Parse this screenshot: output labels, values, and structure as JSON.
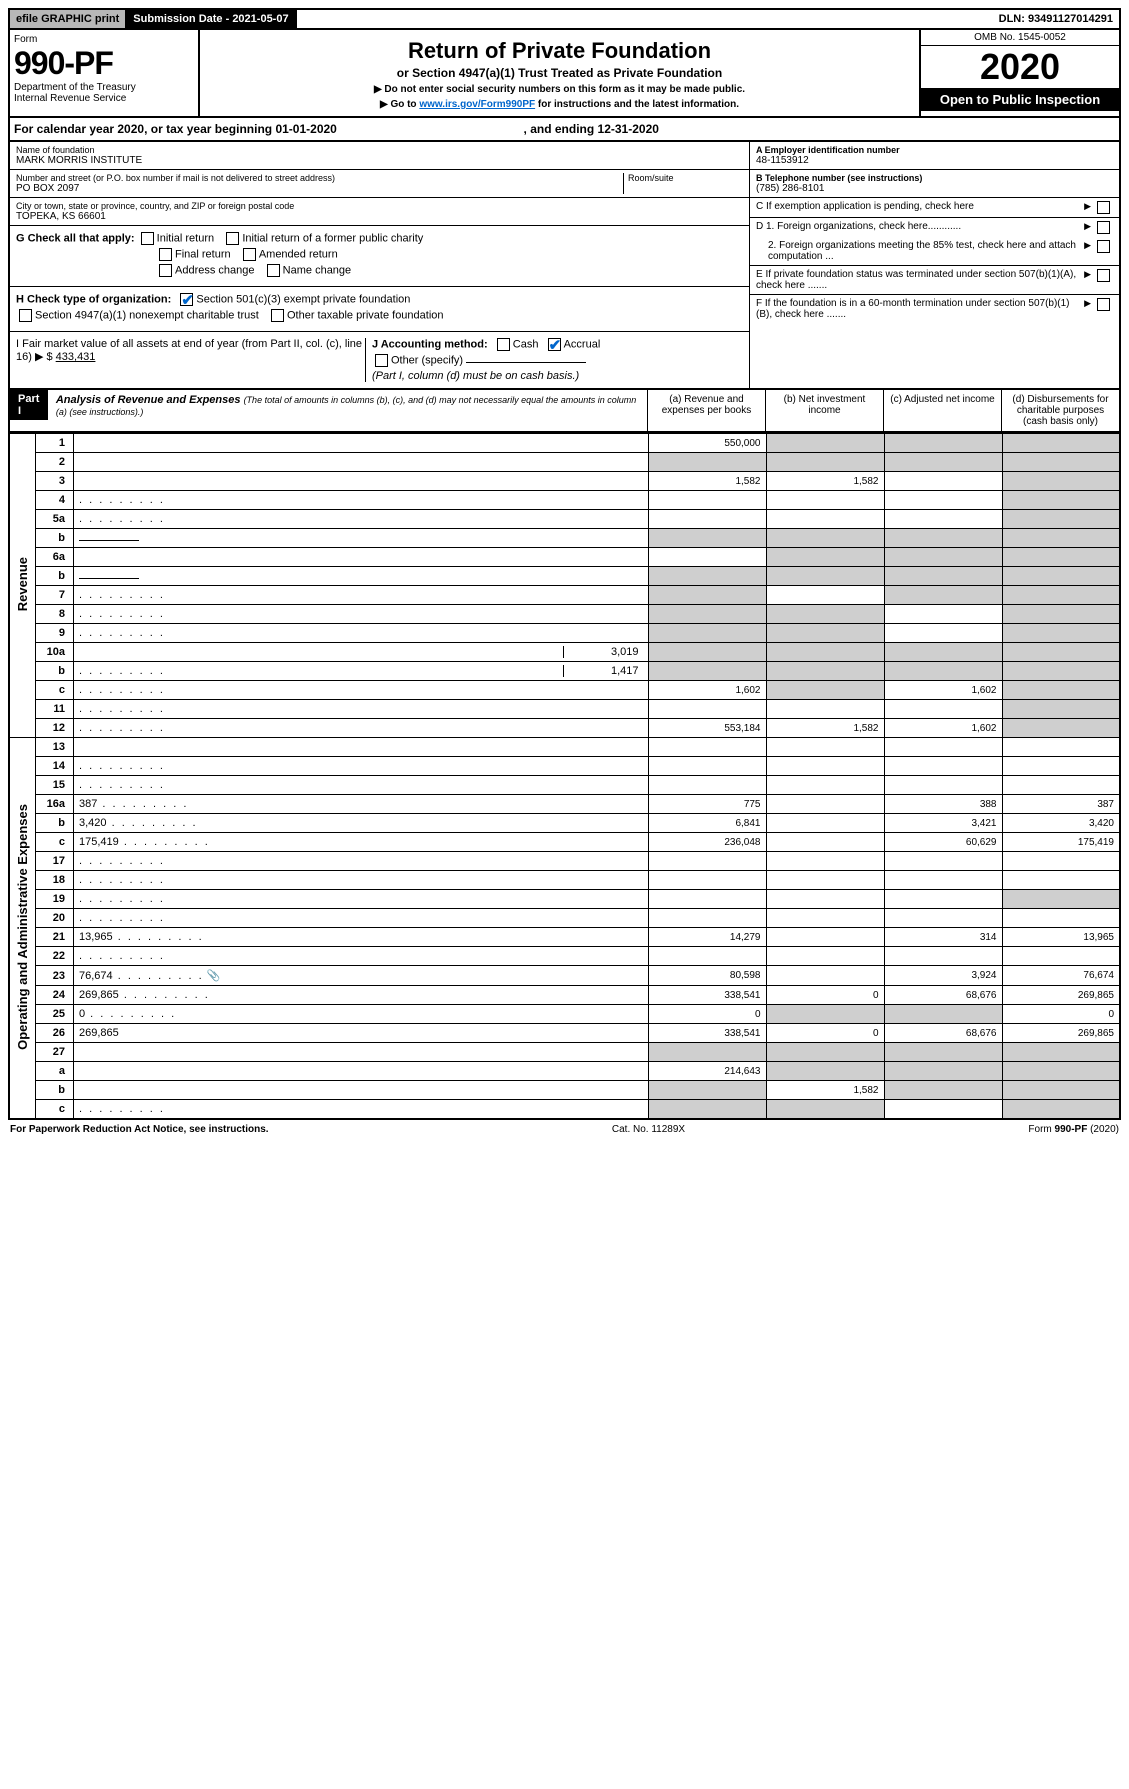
{
  "topbar": {
    "efile": "efile GRAPHIC print",
    "submission": "Submission Date - 2021-05-07",
    "dln": "DLN: 93491127014291"
  },
  "header": {
    "form": "Form",
    "number": "990-PF",
    "dept": "Department of the Treasury",
    "irs": "Internal Revenue Service",
    "title": "Return of Private Foundation",
    "subtitle": "or Section 4947(a)(1) Trust Treated as Private Foundation",
    "note1": "▶ Do not enter social security numbers on this form as it may be made public.",
    "note2_pre": "▶ Go to ",
    "note2_link": "www.irs.gov/Form990PF",
    "note2_post": " for instructions and the latest information.",
    "omb": "OMB No. 1545-0052",
    "year": "2020",
    "open": "Open to Public Inspection"
  },
  "calyear": {
    "pre": "For calendar year 2020, or tax year beginning ",
    "begin": "01-01-2020",
    "mid": " , and ending ",
    "end": "12-31-2020"
  },
  "info": {
    "name_lbl": "Name of foundation",
    "name": "MARK MORRIS INSTITUTE",
    "addr_lbl": "Number and street (or P.O. box number if mail is not delivered to street address)",
    "room_lbl": "Room/suite",
    "addr": "PO BOX 2097",
    "city_lbl": "City or town, state or province, country, and ZIP or foreign postal code",
    "city": "TOPEKA, KS  66601",
    "A_lbl": "A Employer identification number",
    "A_val": "48-1153912",
    "B_lbl": "B Telephone number (see instructions)",
    "B_val": "(785) 286-8101",
    "C_lbl": "C If exemption application is pending, check here",
    "D1": "D 1. Foreign organizations, check here............",
    "D2": "2. Foreign organizations meeting the 85% test, check here and attach computation ...",
    "E": "E If private foundation status was terminated under section 507(b)(1)(A), check here .......",
    "F": "F If the foundation is in a 60-month termination under section 507(b)(1)(B), check here .......",
    "G": "G Check all that apply:",
    "G_initial": "Initial return",
    "G_initial_former": "Initial return of a former public charity",
    "G_final": "Final return",
    "G_amended": "Amended return",
    "G_address": "Address change",
    "G_name": "Name change",
    "H": "H Check type of organization:",
    "H_501c3": "Section 501(c)(3) exempt private foundation",
    "H_4947": "Section 4947(a)(1) nonexempt charitable trust",
    "H_other": "Other taxable private foundation",
    "I": "I Fair market value of all assets at end of year (from Part II, col. (c), line 16) ▶ $",
    "I_val": "433,431",
    "J": "J Accounting method:",
    "J_cash": "Cash",
    "J_accrual": "Accrual",
    "J_other": "Other (specify)",
    "J_note": "(Part I, column (d) must be on cash basis.)"
  },
  "part1": {
    "label": "Part I",
    "title": "Analysis of Revenue and Expenses",
    "note": "(The total of amounts in columns (b), (c), and (d) may not necessarily equal the amounts in column (a) (see instructions).)",
    "col_a": "(a) Revenue and expenses per books",
    "col_b": "(b) Net investment income",
    "col_c": "(c) Adjusted net income",
    "col_d": "(d) Disbursements for charitable purposes (cash basis only)"
  },
  "sections": {
    "revenue": "Revenue",
    "expenses": "Operating and Administrative Expenses"
  },
  "rows": [
    {
      "n": "1",
      "d": "",
      "a": "550,000",
      "b": "",
      "c": "",
      "bg": true,
      "cg": true,
      "dg": true
    },
    {
      "n": "2",
      "d": "",
      "a": "",
      "b": "",
      "c": "",
      "ag": true,
      "bg": true,
      "cg": true,
      "dg": true
    },
    {
      "n": "3",
      "d": "",
      "a": "1,582",
      "b": "1,582",
      "c": "",
      "dg": true
    },
    {
      "n": "4",
      "d": "",
      "a": "",
      "b": "",
      "c": "",
      "dg": true,
      "dots": true
    },
    {
      "n": "5a",
      "d": "",
      "a": "",
      "b": "",
      "c": "",
      "dg": true,
      "dots": true
    },
    {
      "n": "b",
      "d": "",
      "a": "",
      "b": "",
      "c": "",
      "ag": true,
      "bg": true,
      "cg": true,
      "dg": true,
      "inline": ""
    },
    {
      "n": "6a",
      "d": "",
      "a": "",
      "b": "",
      "c": "",
      "bg": true,
      "cg": true,
      "dg": true
    },
    {
      "n": "b",
      "d": "",
      "a": "",
      "b": "",
      "c": "",
      "ag": true,
      "bg": true,
      "cg": true,
      "dg": true,
      "inline": ""
    },
    {
      "n": "7",
      "d": "",
      "a": "",
      "b": "",
      "c": "",
      "ag": true,
      "cg": true,
      "dg": true,
      "dots": true
    },
    {
      "n": "8",
      "d": "",
      "a": "",
      "b": "",
      "c": "",
      "ag": true,
      "bg": true,
      "dg": true,
      "dots": true
    },
    {
      "n": "9",
      "d": "",
      "a": "",
      "b": "",
      "c": "",
      "ag": true,
      "bg": true,
      "dg": true,
      "dots": true
    },
    {
      "n": "10a",
      "d": "",
      "a": "",
      "b": "",
      "c": "",
      "ag": true,
      "bg": true,
      "cg": true,
      "dg": true,
      "split": "3,019"
    },
    {
      "n": "b",
      "d": "",
      "a": "",
      "b": "",
      "c": "",
      "ag": true,
      "bg": true,
      "cg": true,
      "dg": true,
      "split": "1,417",
      "dots": true
    },
    {
      "n": "c",
      "d": "",
      "a": "1,602",
      "b": "",
      "c": "1,602",
      "bg": true,
      "dg": true,
      "dots": true
    },
    {
      "n": "11",
      "d": "",
      "a": "",
      "b": "",
      "c": "",
      "dg": true,
      "dots": true
    },
    {
      "n": "12",
      "d": "",
      "a": "553,184",
      "b": "1,582",
      "c": "1,602",
      "dg": true,
      "dots": true
    },
    {
      "n": "13",
      "d": "",
      "a": "",
      "b": "",
      "c": ""
    },
    {
      "n": "14",
      "d": "",
      "a": "",
      "b": "",
      "c": "",
      "dots": true
    },
    {
      "n": "15",
      "d": "",
      "a": "",
      "b": "",
      "c": "",
      "dots": true
    },
    {
      "n": "16a",
      "d": "387",
      "a": "775",
      "b": "",
      "c": "388",
      "dots": true
    },
    {
      "n": "b",
      "d": "3,420",
      "a": "6,841",
      "b": "",
      "c": "3,421",
      "dots": true
    },
    {
      "n": "c",
      "d": "175,419",
      "a": "236,048",
      "b": "",
      "c": "60,629",
      "dots": true
    },
    {
      "n": "17",
      "d": "",
      "a": "",
      "b": "",
      "c": "",
      "dots": true
    },
    {
      "n": "18",
      "d": "",
      "a": "",
      "b": "",
      "c": "",
      "dots": true
    },
    {
      "n": "19",
      "d": "",
      "a": "",
      "b": "",
      "c": "",
      "dg": true,
      "dots": true
    },
    {
      "n": "20",
      "d": "",
      "a": "",
      "b": "",
      "c": "",
      "dots": true
    },
    {
      "n": "21",
      "d": "13,965",
      "a": "14,279",
      "b": "",
      "c": "314",
      "dots": true
    },
    {
      "n": "22",
      "d": "",
      "a": "",
      "b": "",
      "c": "",
      "dots": true
    },
    {
      "n": "23",
      "d": "76,674",
      "a": "80,598",
      "b": "",
      "c": "3,924",
      "dots": true,
      "icon": true
    },
    {
      "n": "24",
      "d": "269,865",
      "a": "338,541",
      "b": "0",
      "c": "68,676",
      "dots": true
    },
    {
      "n": "25",
      "d": "0",
      "a": "0",
      "b": "",
      "c": "",
      "bg": true,
      "cg": true,
      "dots": true
    },
    {
      "n": "26",
      "d": "269,865",
      "a": "338,541",
      "b": "0",
      "c": "68,676"
    },
    {
      "n": "27",
      "d": "",
      "a": "",
      "b": "",
      "c": "",
      "ag": true,
      "bg": true,
      "cg": true,
      "dg": true
    },
    {
      "n": "a",
      "d": "",
      "a": "214,643",
      "b": "",
      "c": "",
      "bg": true,
      "cg": true,
      "dg": true
    },
    {
      "n": "b",
      "d": "",
      "a": "",
      "b": "1,582",
      "c": "",
      "ag": true,
      "cg": true,
      "dg": true
    },
    {
      "n": "c",
      "d": "",
      "a": "",
      "b": "",
      "c": "",
      "ag": true,
      "bg": true,
      "dg": true,
      "dots": true
    }
  ],
  "footer": {
    "left": "For Paperwork Reduction Act Notice, see instructions.",
    "mid": "Cat. No. 11289X",
    "right": "Form 990-PF (2020)"
  }
}
